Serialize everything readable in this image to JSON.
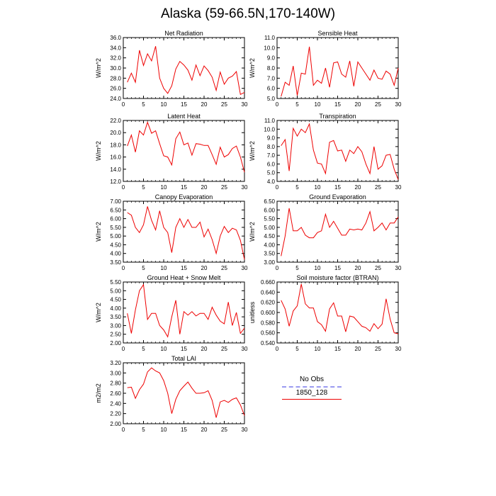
{
  "title": "Alaska (59-66.5N,170-140W)",
  "colors": {
    "model": "#ee0000",
    "obs": "#9a9af0",
    "axis": "#000000"
  },
  "legend": {
    "obs_label": "No Obs",
    "model_label": "1850_128"
  },
  "chart_data": [
    {
      "type": "line",
      "title": "Net Radiation",
      "ylabel": "W/m^2",
      "xlim": [
        0,
        30
      ],
      "ylim": [
        24,
        36
      ],
      "xticks": [
        0,
        5,
        10,
        15,
        20,
        25,
        30
      ],
      "yticks": [
        "24.0",
        "26.0",
        "28.0",
        "30.0",
        "32.0",
        "34.0",
        "36.0"
      ],
      "series": [
        {
          "x": [
            1,
            2,
            3,
            4,
            5,
            6,
            7,
            8,
            9,
            10,
            11,
            12,
            13,
            14,
            15,
            16,
            17,
            18,
            19,
            20,
            21,
            22,
            23,
            24,
            25,
            26,
            27,
            28,
            29,
            30
          ],
          "values": [
            27.2,
            29.0,
            27.2,
            33.5,
            30.5,
            32.8,
            31.4,
            34.3,
            28.0,
            26.0,
            25.0,
            26.5,
            29.8,
            31.3,
            30.6,
            29.6,
            27.6,
            30.6,
            28.5,
            30.4,
            29.5,
            28.2,
            25.6,
            29.2,
            26.8,
            28.0,
            28.4,
            29.3,
            24.8,
            25.2
          ]
        }
      ]
    },
    {
      "type": "line",
      "title": "Sensible Heat",
      "ylabel": "W/m^2",
      "xlim": [
        0,
        30
      ],
      "ylim": [
        5,
        11
      ],
      "xticks": [
        0,
        5,
        10,
        15,
        20,
        25,
        30
      ],
      "yticks": [
        "5.0",
        "6.0",
        "7.0",
        "8.0",
        "9.0",
        "10.0",
        "11.0"
      ],
      "series": [
        {
          "x": [
            1,
            2,
            3,
            4,
            5,
            6,
            7,
            8,
            9,
            10,
            11,
            12,
            13,
            14,
            15,
            16,
            17,
            18,
            19,
            20,
            21,
            22,
            23,
            24,
            25,
            26,
            27,
            28,
            29,
            30
          ],
          "values": [
            5.2,
            6.6,
            6.3,
            8.2,
            5.3,
            7.5,
            7.4,
            10.1,
            6.3,
            6.8,
            6.5,
            8.0,
            6.1,
            8.5,
            8.6,
            7.4,
            7.1,
            8.7,
            6.2,
            8.6,
            8.0,
            7.4,
            6.8,
            7.8,
            7.0,
            6.9,
            7.7,
            7.4,
            6.3,
            8.0
          ]
        }
      ]
    },
    {
      "type": "line",
      "title": "Latent Heat",
      "ylabel": "W/m^2",
      "xlim": [
        0,
        30
      ],
      "ylim": [
        12,
        22
      ],
      "xticks": [
        0,
        5,
        10,
        15,
        20,
        25,
        30
      ],
      "yticks": [
        "12.0",
        "14.0",
        "16.0",
        "18.0",
        "20.0",
        "22.0"
      ],
      "series": [
        {
          "x": [
            1,
            2,
            3,
            4,
            5,
            6,
            7,
            8,
            9,
            10,
            11,
            12,
            13,
            14,
            15,
            16,
            17,
            18,
            19,
            20,
            21,
            22,
            23,
            24,
            25,
            26,
            27,
            28,
            29,
            30
          ],
          "values": [
            17.8,
            19.6,
            16.8,
            20.3,
            19.6,
            21.7,
            19.9,
            20.3,
            18.2,
            16.2,
            16.0,
            14.7,
            19.0,
            20.1,
            18.0,
            18.3,
            16.3,
            18.2,
            18.1,
            17.9,
            17.9,
            16.4,
            14.8,
            17.6,
            16.0,
            16.4,
            17.4,
            17.8,
            16.0,
            13.5
          ]
        }
      ]
    },
    {
      "type": "line",
      "title": "Transpiration",
      "ylabel": "W/m^2",
      "xlim": [
        0,
        30
      ],
      "ylim": [
        4,
        11
      ],
      "xticks": [
        0,
        5,
        10,
        15,
        20,
        25,
        30
      ],
      "yticks": [
        "4.0",
        "5.0",
        "6.0",
        "7.0",
        "8.0",
        "9.0",
        "10.0",
        "11.0"
      ],
      "series": [
        {
          "x": [
            1,
            2,
            3,
            4,
            5,
            6,
            7,
            8,
            9,
            10,
            11,
            12,
            13,
            14,
            15,
            16,
            17,
            18,
            19,
            20,
            21,
            22,
            23,
            24,
            25,
            26,
            27,
            28,
            29,
            30
          ],
          "values": [
            8.1,
            8.8,
            5.2,
            10.1,
            9.2,
            10.0,
            9.6,
            10.6,
            7.6,
            6.1,
            6.0,
            4.9,
            8.5,
            8.7,
            7.5,
            7.6,
            6.3,
            7.6,
            7.2,
            8.0,
            7.4,
            6.0,
            4.9,
            8.0,
            5.4,
            5.8,
            7.0,
            7.1,
            5.4,
            4.2
          ]
        }
      ]
    },
    {
      "type": "line",
      "title": "Canopy Evaporation",
      "ylabel": "W/m^2",
      "xlim": [
        0,
        30
      ],
      "ylim": [
        3.5,
        7.0
      ],
      "xticks": [
        0,
        5,
        10,
        15,
        20,
        25,
        30
      ],
      "yticks": [
        "3.50",
        "4.00",
        "4.50",
        "5.00",
        "5.50",
        "6.00",
        "6.50",
        "7.00"
      ],
      "series": [
        {
          "x": [
            1,
            2,
            3,
            4,
            5,
            6,
            7,
            8,
            9,
            10,
            11,
            12,
            13,
            14,
            15,
            16,
            17,
            18,
            19,
            20,
            21,
            22,
            23,
            24,
            25,
            26,
            27,
            28,
            29,
            30
          ],
          "values": [
            6.35,
            6.2,
            5.5,
            5.2,
            5.65,
            6.7,
            5.9,
            5.35,
            6.45,
            5.5,
            5.2,
            4.05,
            5.5,
            6.0,
            5.5,
            5.95,
            5.5,
            5.5,
            5.8,
            4.95,
            5.4,
            4.8,
            4.0,
            5.0,
            5.55,
            5.2,
            5.45,
            5.35,
            4.75,
            3.65
          ]
        }
      ]
    },
    {
      "type": "line",
      "title": "Ground Evaporation",
      "ylabel": "W/m^2",
      "xlim": [
        0,
        30
      ],
      "ylim": [
        3.0,
        6.5
      ],
      "xticks": [
        0,
        5,
        10,
        15,
        20,
        25,
        30
      ],
      "yticks": [
        "3.00",
        "3.50",
        "4.00",
        "4.50",
        "5.00",
        "5.50",
        "6.00",
        "6.50"
      ],
      "series": [
        {
          "x": [
            1,
            2,
            3,
            4,
            5,
            6,
            7,
            8,
            9,
            10,
            11,
            12,
            13,
            14,
            15,
            16,
            17,
            18,
            19,
            20,
            21,
            22,
            23,
            24,
            25,
            26,
            27,
            28,
            29,
            30
          ],
          "values": [
            3.35,
            4.5,
            6.1,
            4.8,
            4.8,
            5.0,
            4.55,
            4.4,
            4.4,
            4.7,
            4.8,
            5.75,
            5.0,
            5.35,
            4.95,
            4.55,
            4.55,
            4.9,
            4.85,
            4.9,
            4.85,
            5.25,
            5.9,
            4.8,
            5.0,
            5.25,
            4.85,
            5.25,
            5.25,
            5.6
          ]
        }
      ]
    },
    {
      "type": "line",
      "title": "Ground Heat + Snow Melt",
      "ylabel": "W/m^2",
      "xlim": [
        0,
        30
      ],
      "ylim": [
        2.0,
        5.5
      ],
      "xticks": [
        0,
        5,
        10,
        15,
        20,
        25,
        30
      ],
      "yticks": [
        "2.00",
        "2.50",
        "3.00",
        "3.50",
        "4.00",
        "4.50",
        "5.00",
        "5.50"
      ],
      "series": [
        {
          "x": [
            1,
            2,
            3,
            4,
            5,
            6,
            7,
            8,
            9,
            10,
            11,
            12,
            13,
            14,
            15,
            16,
            17,
            18,
            19,
            20,
            21,
            22,
            23,
            24,
            25,
            26,
            27,
            28,
            29,
            30
          ],
          "values": [
            3.7,
            2.55,
            3.9,
            5.0,
            5.35,
            3.35,
            3.7,
            3.7,
            3.0,
            2.75,
            2.35,
            3.5,
            4.45,
            2.5,
            3.8,
            3.6,
            3.8,
            3.55,
            3.7,
            3.7,
            3.35,
            4.05,
            3.6,
            3.25,
            3.1,
            4.35,
            3.0,
            3.75,
            2.55,
            2.85
          ]
        }
      ]
    },
    {
      "type": "line",
      "title": "Soil moisture factor (BTRAN)",
      "ylabel": "unitless",
      "xlim": [
        0,
        30
      ],
      "ylim": [
        0.54,
        0.66
      ],
      "xticks": [
        0,
        5,
        10,
        15,
        20,
        25,
        30
      ],
      "yticks": [
        "0.540",
        "0.560",
        "0.580",
        "0.600",
        "0.620",
        "0.640",
        "0.660"
      ],
      "series": [
        {
          "x": [
            1,
            2,
            3,
            4,
            5,
            6,
            7,
            8,
            9,
            10,
            11,
            12,
            13,
            14,
            15,
            16,
            17,
            18,
            19,
            20,
            21,
            22,
            23,
            24,
            25,
            26,
            27,
            28,
            29,
            30
          ],
          "values": [
            0.624,
            0.607,
            0.573,
            0.603,
            0.613,
            0.656,
            0.617,
            0.609,
            0.609,
            0.582,
            0.576,
            0.563,
            0.607,
            0.619,
            0.593,
            0.593,
            0.562,
            0.593,
            0.591,
            0.582,
            0.573,
            0.57,
            0.563,
            0.578,
            0.568,
            0.577,
            0.627,
            0.587,
            0.56,
            0.558
          ]
        }
      ]
    },
    {
      "type": "line",
      "title": "Total LAI",
      "ylabel": "m2/m2",
      "xlim": [
        0,
        30
      ],
      "ylim": [
        2.0,
        3.2
      ],
      "xticks": [
        0,
        5,
        10,
        15,
        20,
        25,
        30
      ],
      "yticks": [
        "2.00",
        "2.20",
        "2.40",
        "2.60",
        "2.80",
        "3.00",
        "3.20"
      ],
      "series": [
        {
          "x": [
            1,
            2,
            3,
            4,
            5,
            6,
            7,
            8,
            9,
            10,
            11,
            12,
            13,
            14,
            15,
            16,
            17,
            18,
            19,
            20,
            21,
            22,
            23,
            24,
            25,
            26,
            27,
            28,
            29,
            30
          ],
          "values": [
            2.71,
            2.72,
            2.5,
            2.67,
            2.78,
            3.02,
            3.1,
            3.04,
            3.0,
            2.85,
            2.6,
            2.2,
            2.48,
            2.65,
            2.74,
            2.82,
            2.7,
            2.6,
            2.6,
            2.61,
            2.65,
            2.46,
            2.12,
            2.43,
            2.46,
            2.42,
            2.48,
            2.51,
            2.37,
            2.16
          ]
        }
      ]
    }
  ]
}
